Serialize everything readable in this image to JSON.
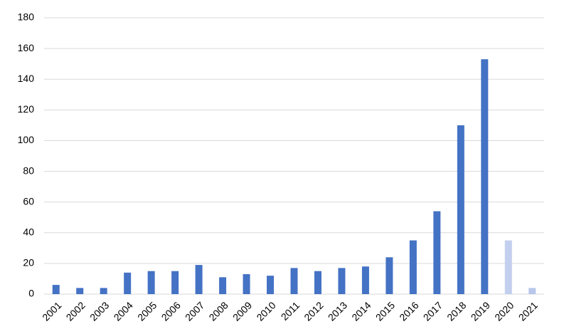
{
  "chart_data": {
    "type": "bar",
    "categories": [
      "2001",
      "2002",
      "2003",
      "2004",
      "2005",
      "2006",
      "2007",
      "2008",
      "2009",
      "2010",
      "2011",
      "2012",
      "2013",
      "2014",
      "2015",
      "2016",
      "2017",
      "2018",
      "2019",
      "2020",
      "2021"
    ],
    "values": [
      6,
      4,
      4,
      14,
      15,
      15,
      19,
      11,
      13,
      12,
      17,
      15,
      17,
      18,
      24,
      35,
      54,
      110,
      153,
      35,
      4
    ],
    "colors": [
      "#4472c4",
      "#4472c4",
      "#4472c4",
      "#4472c4",
      "#4472c4",
      "#4472c4",
      "#4472c4",
      "#4472c4",
      "#4472c4",
      "#4472c4",
      "#4472c4",
      "#4472c4",
      "#4472c4",
      "#4472c4",
      "#4472c4",
      "#4472c4",
      "#4472c4",
      "#4472c4",
      "#4472c4",
      "#c3cfee",
      "#b7c6ea"
    ],
    "ylim": [
      0,
      180
    ],
    "yticks": [
      0,
      20,
      40,
      60,
      80,
      100,
      120,
      140,
      160,
      180
    ],
    "grid": true
  }
}
